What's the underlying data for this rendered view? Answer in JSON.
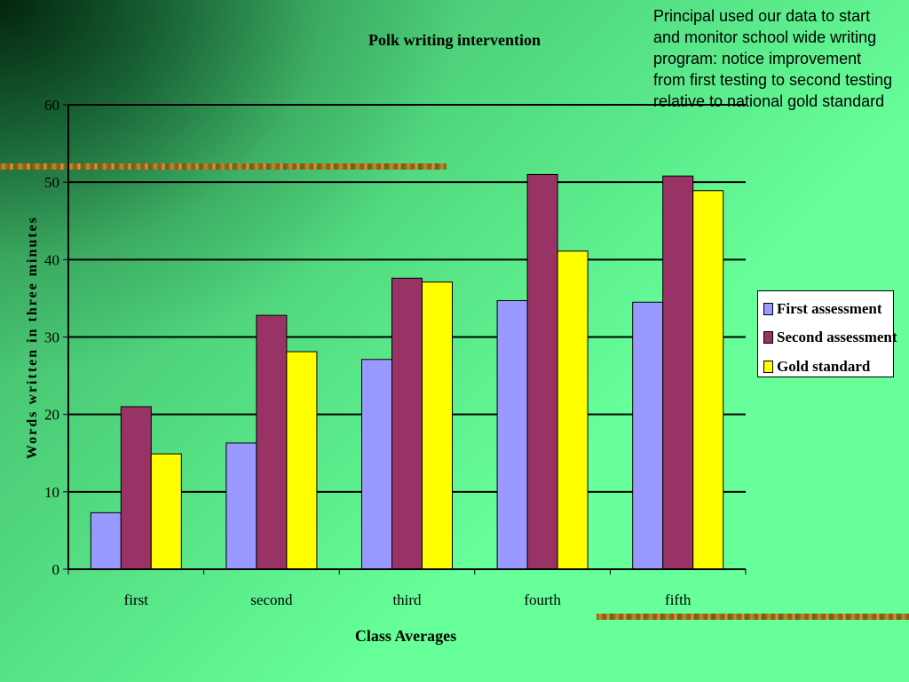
{
  "note": "Principal used our data to start and monitor school wide writing program: notice improvement from first testing to second testing relative to national gold standard",
  "chart_data": {
    "type": "bar",
    "title": "Polk writing intervention",
    "xlabel": "Class Averages",
    "ylabel": "Words written in three minutes",
    "categories": [
      "first",
      "second",
      "third",
      "fourth",
      "fifth"
    ],
    "ylim": [
      0,
      60
    ],
    "yticks": [
      "0",
      "10",
      "20",
      "30",
      "40",
      "50",
      "60"
    ],
    "grid": true,
    "legend_position": "right",
    "series": [
      {
        "name": "First assessment",
        "color": "#9999ff",
        "values": [
          7.3,
          16.3,
          27.1,
          34.7,
          34.5
        ]
      },
      {
        "name": "Second assessment",
        "color": "#993366",
        "values": [
          21,
          32.8,
          37.6,
          51,
          50.8
        ]
      },
      {
        "name": "Gold standard",
        "color": "#ffff00",
        "values": [
          14.9,
          28.1,
          37.1,
          41.1,
          48.9
        ]
      }
    ]
  }
}
